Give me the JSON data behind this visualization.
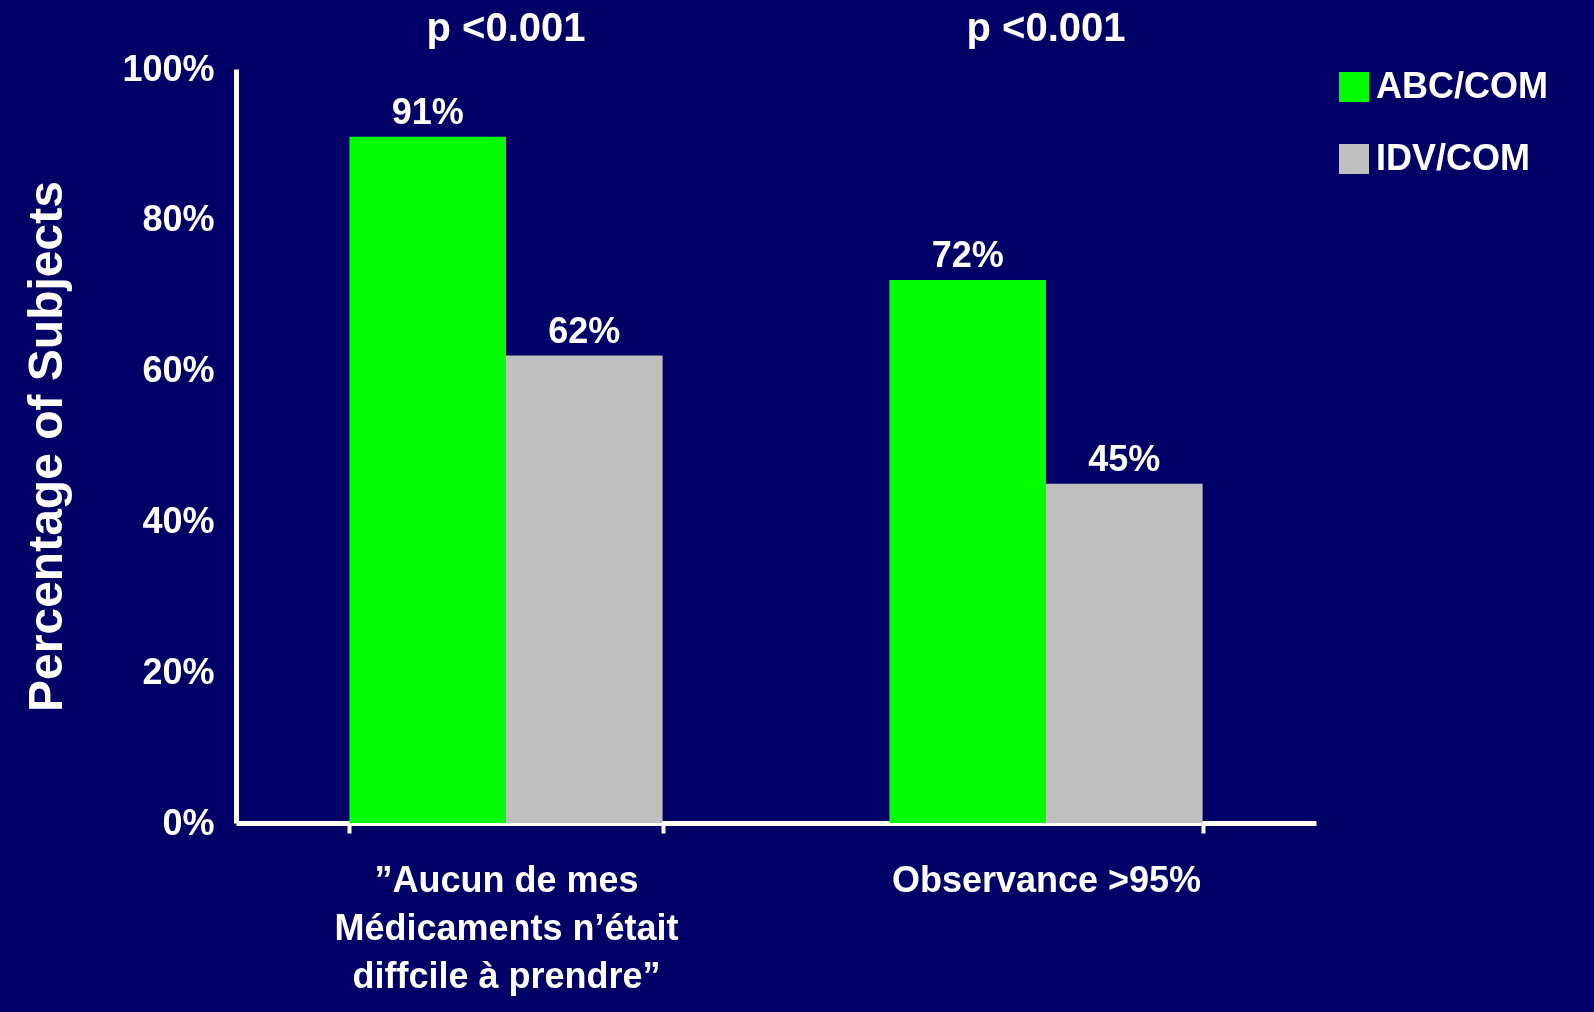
{
  "chart_data": {
    "type": "bar",
    "ylabel": "Percentage of Subjects",
    "categories": [
      "”Aucun de mes\nMédicaments n’était\ndiffcile à prendre”",
      "Observance >95%"
    ],
    "series": [
      {
        "name": "ABC/COM",
        "color": "#00ff00",
        "values": [
          91,
          72
        ],
        "value_labels": [
          "91%",
          "72%"
        ]
      },
      {
        "name": "IDV/COM",
        "color": "#c0c0c0",
        "values": [
          62,
          45
        ],
        "value_labels": [
          "62%",
          "45%"
        ]
      }
    ],
    "ylim": [
      0,
      100
    ],
    "yticks": [
      {
        "value": 0,
        "label": "0%"
      },
      {
        "value": 20,
        "label": "20%"
      },
      {
        "value": 40,
        "label": "40%"
      },
      {
        "value": 60,
        "label": "60%"
      },
      {
        "value": 80,
        "label": "80%"
      },
      {
        "value": 100,
        "label": "100%"
      }
    ],
    "grid": false,
    "legend": "right",
    "annotations": [
      "p <0.001",
      "p <0.001"
    ]
  }
}
